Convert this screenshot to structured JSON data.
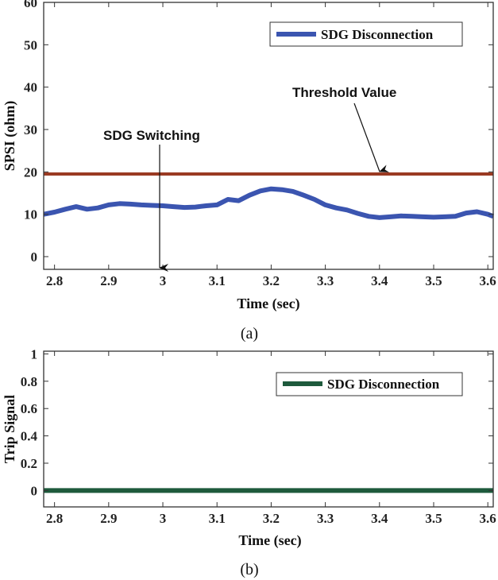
{
  "chart_data": [
    {
      "type": "line",
      "panel": "(a)",
      "caption": "(a)",
      "xlabel": "Time (sec)",
      "ylabel": "SPSI (ohm)",
      "xlim": [
        2.78,
        3.61
      ],
      "ylim": [
        -3,
        60
      ],
      "xticks": [
        2.8,
        2.9,
        3.0,
        3.1,
        3.2,
        3.3,
        3.4,
        3.5,
        3.6
      ],
      "xtick_labels": [
        "2.8",
        "2.9",
        "3",
        "3.1",
        "3.2",
        "3.3",
        "3.4",
        "3.5",
        "3.6"
      ],
      "yticks": [
        0,
        10,
        20,
        30,
        40,
        50,
        60
      ],
      "ytick_labels": [
        "0",
        "10",
        "20",
        "30",
        "40",
        "50",
        "60"
      ],
      "legend": "top-right",
      "series": [
        {
          "name": "SDG Disconnection",
          "color": "#3b55b0",
          "x": [
            2.78,
            2.8,
            2.82,
            2.84,
            2.86,
            2.88,
            2.9,
            2.92,
            2.94,
            2.96,
            2.98,
            3.0,
            3.02,
            3.04,
            3.06,
            3.08,
            3.1,
            3.12,
            3.14,
            3.16,
            3.18,
            3.2,
            3.22,
            3.24,
            3.26,
            3.28,
            3.3,
            3.32,
            3.34,
            3.36,
            3.38,
            3.4,
            3.42,
            3.44,
            3.46,
            3.48,
            3.5,
            3.52,
            3.54,
            3.56,
            3.58,
            3.6,
            3.61
          ],
          "values": [
            10,
            10.5,
            11.2,
            11.8,
            11.2,
            11.5,
            12.2,
            12.5,
            12.4,
            12.2,
            12.1,
            12.0,
            11.8,
            11.6,
            11.7,
            12.0,
            12.2,
            13.5,
            13.2,
            14.5,
            15.5,
            16.0,
            15.8,
            15.4,
            14.5,
            13.5,
            12.2,
            11.5,
            11.0,
            10.2,
            9.5,
            9.2,
            9.4,
            9.6,
            9.5,
            9.4,
            9.3,
            9.4,
            9.5,
            10.3,
            10.6,
            10.0,
            9.5
          ]
        },
        {
          "name": "Threshold Value",
          "color": "#9a3a22",
          "x": [
            2.78,
            3.61
          ],
          "values": [
            19.5,
            19.5
          ]
        }
      ],
      "annotations": [
        {
          "text": "SDG Switching",
          "x": 3.0,
          "text_y": 34.5,
          "arrow_to_y": -3
        },
        {
          "text": "Threshold Value",
          "text_y": 44,
          "text_x": 3.47,
          "arrow_from_x": 3.36,
          "arrow_from_y": 39,
          "arrow_to_x": 3.4,
          "arrow_to_y": 20.3
        }
      ]
    },
    {
      "type": "line",
      "panel": "(b)",
      "caption": "(b)",
      "xlabel": "Time (sec)",
      "ylabel": "Trip Signal",
      "xlim": [
        2.78,
        3.61
      ],
      "ylim": [
        -0.12,
        1.02
      ],
      "xticks": [
        2.8,
        2.9,
        3.0,
        3.1,
        3.2,
        3.3,
        3.4,
        3.5,
        3.6
      ],
      "xtick_labels": [
        "2.8",
        "2.9",
        "3",
        "3.1",
        "3.2",
        "3.3",
        "3.4",
        "3.5",
        "3.6"
      ],
      "yticks": [
        0,
        0.2,
        0.4,
        0.6,
        0.8,
        1
      ],
      "ytick_labels": [
        "0",
        "0.2",
        "0.4",
        "0.6",
        "0.8",
        "1"
      ],
      "legend": "top-right",
      "series": [
        {
          "name": "SDG Disconnection",
          "color": "#1e5a3c",
          "x": [
            2.78,
            3.61
          ],
          "values": [
            0,
            0
          ]
        }
      ]
    }
  ]
}
